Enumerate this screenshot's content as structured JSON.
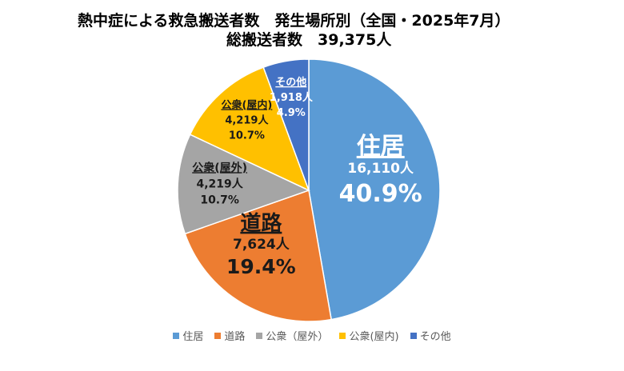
{
  "header": {
    "title_line1": "熱中症による救急搬送者数　発生場所別（全国・2025年7月）",
    "title_line2": "総搬送者数　39,375人"
  },
  "chart_data": {
    "type": "pie",
    "title": "熱中症による救急搬送者数　発生場所別（全国・2025年7月）",
    "subtitle": "総搬送者数　39,375人",
    "start": "12 o'clock",
    "direction": "clockwise",
    "slices": [
      {
        "label": "住居",
        "legend": "住居",
        "value": 16110,
        "value_label": "16,110人",
        "percent": 40.9,
        "percent_label": "40.9%",
        "color": "#5B9BD5"
      },
      {
        "label": "道路",
        "legend": "道路",
        "value": 7624,
        "value_label": "7,624人",
        "percent": 19.4,
        "percent_label": "19.4%",
        "color": "#ED7D31"
      },
      {
        "label": "公衆(屋外)",
        "legend": "公衆（屋外）",
        "value": 4219,
        "value_label": "4,219人",
        "percent": 10.7,
        "percent_label": "10.7%",
        "color": "#A5A5A5"
      },
      {
        "label": "公衆(屋内)",
        "legend": "公衆(屋内)",
        "value": 4219,
        "value_label": "4,219人",
        "percent": 10.7,
        "percent_label": "10.7%",
        "color": "#FFC000"
      },
      {
        "label": "その他",
        "legend": "その他",
        "value": 1918,
        "value_label": "1,918人",
        "percent": 4.9,
        "percent_label": "4.9%",
        "color": "#4472C4"
      }
    ],
    "legend_position": "bottom"
  }
}
